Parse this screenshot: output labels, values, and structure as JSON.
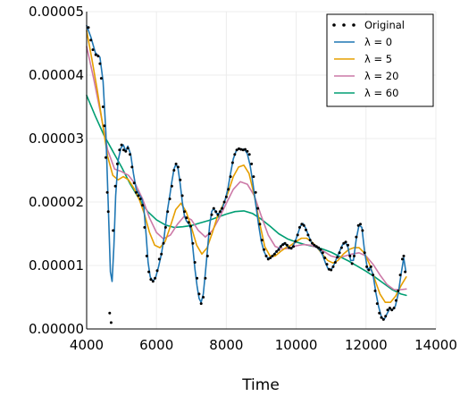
{
  "chart_data": {
    "type": "line",
    "title": "",
    "xlabel": "Time",
    "ylabel": "",
    "xlim": [
      4000,
      14000
    ],
    "ylim": [
      0.0,
      5e-05
    ],
    "x_ticks": [
      "4000",
      "6000",
      "8000",
      "10000",
      "12000",
      "14000"
    ],
    "y_ticks": [
      "0.00000",
      "0.00001",
      "0.00002",
      "0.00003",
      "0.00004",
      "0.00005"
    ],
    "x_tick_values": [
      4000,
      6000,
      8000,
      10000,
      12000,
      14000
    ],
    "y_tick_values": [
      0.0,
      1e-05,
      2e-05,
      3e-05,
      4e-05,
      5e-05
    ],
    "grid": true,
    "legend_position": "top-right",
    "colors": {
      "original": "#000000",
      "lambda_0": "#1f77b4",
      "lambda_5": "#e69f00",
      "lambda_20": "#cc79a7",
      "lambda_60": "#009e73"
    },
    "legend": [
      {
        "label": "Original",
        "marker": "dot"
      },
      {
        "label": "λ   = 0",
        "marker": "line"
      },
      {
        "label": "λ   = 5",
        "marker": "line"
      },
      {
        "label": "λ   = 20",
        "marker": "line"
      },
      {
        "label": "λ   = 60",
        "marker": "line"
      }
    ],
    "original_points": [
      [
        4050,
        4.75e-05
      ],
      [
        4120,
        4.55e-05
      ],
      [
        4180,
        4.4e-05
      ],
      [
        4260,
        4.32e-05
      ],
      [
        4330,
        4.3e-05
      ],
      [
        4380,
        4.18e-05
      ],
      [
        4420,
        3.95e-05
      ],
      [
        4470,
        3.5e-05
      ],
      [
        4510,
        3.2e-05
      ],
      [
        4550,
        2.7e-05
      ],
      [
        4590,
        2.15e-05
      ],
      [
        4620,
        1.85e-05
      ],
      [
        4660,
        2.5e-06
      ],
      [
        4700,
        1e-06
      ],
      [
        4760,
        1.55e-05
      ],
      [
        4820,
        2.25e-05
      ],
      [
        4880,
        2.6e-05
      ],
      [
        4940,
        2.82e-05
      ],
      [
        5000,
        2.9e-05
      ],
      [
        5060,
        2.82e-05
      ],
      [
        5120,
        2.8e-05
      ],
      [
        5180,
        2.85e-05
      ],
      [
        5240,
        2.75e-05
      ],
      [
        5300,
        2.55e-05
      ],
      [
        5360,
        2.3e-05
      ],
      [
        5420,
        2.15e-05
      ],
      [
        5480,
        2.1e-05
      ],
      [
        5540,
        2.05e-05
      ],
      [
        5600,
        1.95e-05
      ],
      [
        5660,
        1.6e-05
      ],
      [
        5720,
        1.15e-05
      ],
      [
        5780,
        9e-06
      ],
      [
        5840,
        7.8e-06
      ],
      [
        5900,
        7.5e-06
      ],
      [
        5960,
        8e-06
      ],
      [
        6020,
        9.2e-06
      ],
      [
        6080,
        1.1e-05
      ],
      [
        6140,
        1.18e-05
      ],
      [
        6200,
        1.35e-05
      ],
      [
        6260,
        1.6e-05
      ],
      [
        6320,
        1.85e-05
      ],
      [
        6380,
        2.05e-05
      ],
      [
        6440,
        2.25e-05
      ],
      [
        6500,
        2.5e-05
      ],
      [
        6560,
        2.6e-05
      ],
      [
        6620,
        2.55e-05
      ],
      [
        6680,
        2.35e-05
      ],
      [
        6740,
        2.1e-05
      ],
      [
        6800,
        1.85e-05
      ],
      [
        6860,
        1.75e-05
      ],
      [
        6920,
        1.68e-05
      ],
      [
        6980,
        1.62e-05
      ],
      [
        7040,
        1.35e-05
      ],
      [
        7100,
        1.05e-05
      ],
      [
        7160,
        8e-06
      ],
      [
        7220,
        5.5e-06
      ],
      [
        7280,
        4e-06
      ],
      [
        7340,
        5e-06
      ],
      [
        7400,
        8e-06
      ],
      [
        7460,
        1.15e-05
      ],
      [
        7520,
        1.5e-05
      ],
      [
        7580,
        1.8e-05
      ],
      [
        7640,
        1.9e-05
      ],
      [
        7700,
        1.85e-05
      ],
      [
        7760,
        1.8e-05
      ],
      [
        7820,
        1.85e-05
      ],
      [
        7880,
        1.9e-05
      ],
      [
        7940,
        2e-05
      ],
      [
        8000,
        2.08e-05
      ],
      [
        8060,
        2.2e-05
      ],
      [
        8120,
        2.4e-05
      ],
      [
        8180,
        2.62e-05
      ],
      [
        8240,
        2.75e-05
      ],
      [
        8300,
        2.82e-05
      ],
      [
        8360,
        2.84e-05
      ],
      [
        8420,
        2.83e-05
      ],
      [
        8480,
        2.82e-05
      ],
      [
        8540,
        2.83e-05
      ],
      [
        8600,
        2.8e-05
      ],
      [
        8660,
        2.75e-05
      ],
      [
        8720,
        2.6e-05
      ],
      [
        8780,
        2.4e-05
      ],
      [
        8840,
        2.15e-05
      ],
      [
        8900,
        1.9e-05
      ],
      [
        8960,
        1.65e-05
      ],
      [
        9020,
        1.4e-05
      ],
      [
        9080,
        1.25e-05
      ],
      [
        9140,
        1.15e-05
      ],
      [
        9200,
        1.1e-05
      ],
      [
        9260,
        1.12e-05
      ],
      [
        9320,
        1.15e-05
      ],
      [
        9380,
        1.18e-05
      ],
      [
        9440,
        1.22e-05
      ],
      [
        9500,
        1.25e-05
      ],
      [
        9560,
        1.3e-05
      ],
      [
        9620,
        1.33e-05
      ],
      [
        9680,
        1.35e-05
      ],
      [
        9740,
        1.32e-05
      ],
      [
        9800,
        1.28e-05
      ],
      [
        9860,
        1.27e-05
      ],
      [
        9920,
        1.3e-05
      ],
      [
        9980,
        1.38e-05
      ],
      [
        10040,
        1.48e-05
      ],
      [
        10100,
        1.6e-05
      ],
      [
        10160,
        1.65e-05
      ],
      [
        10220,
        1.63e-05
      ],
      [
        10280,
        1.56e-05
      ],
      [
        10340,
        1.48e-05
      ],
      [
        10400,
        1.4e-05
      ],
      [
        10460,
        1.35e-05
      ],
      [
        10520,
        1.32e-05
      ],
      [
        10580,
        1.3e-05
      ],
      [
        10640,
        1.28e-05
      ],
      [
        10700,
        1.25e-05
      ],
      [
        10760,
        1.2e-05
      ],
      [
        10820,
        1.12e-05
      ],
      [
        10880,
        1.02e-05
      ],
      [
        10940,
        9.4e-06
      ],
      [
        11000,
        9.3e-06
      ],
      [
        11060,
        9.8e-06
      ],
      [
        11120,
        1.05e-05
      ],
      [
        11180,
        1.13e-05
      ],
      [
        11240,
        1.2e-05
      ],
      [
        11300,
        1.28e-05
      ],
      [
        11360,
        1.35e-05
      ],
      [
        11420,
        1.37e-05
      ],
      [
        11480,
        1.32e-05
      ],
      [
        11540,
        1.15e-05
      ],
      [
        11600,
        1.03e-05
      ],
      [
        11660,
        1.15e-05
      ],
      [
        11720,
        1.45e-05
      ],
      [
        11780,
        1.63e-05
      ],
      [
        11840,
        1.65e-05
      ],
      [
        11900,
        1.55e-05
      ],
      [
        11960,
        1.2e-05
      ],
      [
        12020,
        9.8e-06
      ],
      [
        12080,
        9.3e-06
      ],
      [
        12140,
        9.8e-06
      ],
      [
        12200,
        8.5e-06
      ],
      [
        12260,
        6e-06
      ],
      [
        12320,
        4e-06
      ],
      [
        12380,
        2.5e-06
      ],
      [
        12440,
        1.8e-06
      ],
      [
        12500,
        1.5e-06
      ],
      [
        12560,
        2e-06
      ],
      [
        12620,
        3e-06
      ],
      [
        12680,
        3.3e-06
      ],
      [
        12740,
        3e-06
      ],
      [
        12800,
        3.3e-06
      ],
      [
        12860,
        4.5e-06
      ],
      [
        12920,
        6e-06
      ],
      [
        12980,
        8.5e-06
      ],
      [
        13040,
        1.1e-05
      ],
      [
        13080,
        1.15e-05
      ],
      [
        13120,
        9e-06
      ]
    ],
    "series": [
      {
        "name": "λ   = 0",
        "x": [
          4000,
          4120,
          4250,
          4380,
          4470,
          4550,
          4620,
          4680,
          4730,
          4780,
          4830,
          4900,
          4980,
          5050,
          5120,
          5180,
          5260,
          5340,
          5420,
          5500,
          5580,
          5640,
          5700,
          5760,
          5820,
          5900,
          5980,
          6060,
          6140,
          6220,
          6300,
          6380,
          6440,
          6500,
          6560,
          6620,
          6680,
          6740,
          6800,
          6860,
          6920,
          6980,
          7040,
          7100,
          7160,
          7220,
          7280,
          7340,
          7400,
          7460,
          7520,
          7580,
          7640,
          7720,
          7800,
          7880,
          7960,
          8040,
          8120,
          8200,
          8280,
          8360,
          8440,
          8520,
          8600,
          8680,
          8760,
          8840,
          8920,
          9000,
          9080,
          9160,
          9240,
          9320,
          9400,
          9480,
          9560,
          9640,
          9720,
          9800,
          9880,
          9960,
          10040,
          10120,
          10200,
          10280,
          10360,
          10440,
          10520,
          10600,
          10680,
          10760,
          10840,
          10920,
          11000,
          11080,
          11160,
          11240,
          11320,
          11400,
          11480,
          11560,
          11640,
          11720,
          11800,
          11880,
          11960,
          12040,
          12120,
          12200,
          12280,
          12360,
          12440,
          12520,
          12600,
          12680,
          12760,
          12840,
          12920,
          13000,
          13080,
          13140
        ],
        "y": [
          4.78e-05,
          4.6e-05,
          4.35e-05,
          4.28e-05,
          3.9e-05,
          3.1e-05,
          1.95e-05,
          9e-06,
          7.5e-06,
          1.3e-05,
          2.1e-05,
          2.65e-05,
          2.85e-05,
          2.9e-05,
          2.8e-05,
          2.88e-05,
          2.75e-05,
          2.45e-05,
          2.2e-05,
          2.12e-05,
          2.05e-05,
          1.9e-05,
          1.5e-05,
          1.05e-05,
          8.2e-06,
          7.5e-06,
          8.2e-06,
          9.8e-06,
          1.18e-05,
          1.45e-05,
          1.82e-05,
          2.1e-05,
          2.32e-05,
          2.52e-05,
          2.6e-05,
          2.52e-05,
          2.28e-05,
          2e-05,
          1.78e-05,
          1.7e-05,
          1.66e-05,
          1.58e-05,
          1.28e-05,
          9.5e-06,
          6.8e-06,
          4.8e-06,
          4.2e-06,
          5.5e-06,
          8.8e-06,
          1.25e-05,
          1.62e-05,
          1.85e-05,
          1.9e-05,
          1.82e-05,
          1.82e-05,
          1.9e-05,
          2.02e-05,
          2.2e-05,
          2.45e-05,
          2.68e-05,
          2.8e-05,
          2.84e-05,
          2.83e-05,
          2.83e-05,
          2.76e-05,
          2.58e-05,
          2.3e-05,
          1.98e-05,
          1.65e-05,
          1.38e-05,
          1.22e-05,
          1.13e-05,
          1.11e-05,
          1.15e-05,
          1.2e-05,
          1.25e-05,
          1.31e-05,
          1.35e-05,
          1.32e-05,
          1.27e-05,
          1.28e-05,
          1.36e-05,
          1.49e-05,
          1.62e-05,
          1.66e-05,
          1.58e-05,
          1.46e-05,
          1.36e-05,
          1.31e-05,
          1.28e-05,
          1.24e-05,
          1.16e-05,
          1.04e-05,
          9.4e-06,
          9.3e-06,
          1.01e-05,
          1.12e-05,
          1.22e-05,
          1.32e-05,
          1.37e-05,
          1.29e-05,
          1.08e-05,
          1.08e-05,
          1.42e-05,
          1.64e-05,
          1.6e-05,
          1.22e-05,
          9.4e-06,
          9.7e-06,
          8.6e-06,
          5.8e-06,
          3.5e-06,
          1.9e-06,
          1.5e-06,
          2.4e-06,
          3.2e-06,
          3e-06,
          3.6e-06,
          5.5e-06,
          8.5e-06,
          1.12e-05,
          9e-06
        ]
      },
      {
        "name": "λ   = 5",
        "x": [
          4000,
          4150,
          4300,
          4450,
          4600,
          4750,
          4900,
          5050,
          5200,
          5350,
          5500,
          5650,
          5800,
          5950,
          6100,
          6250,
          6400,
          6550,
          6700,
          6850,
          7000,
          7150,
          7300,
          7450,
          7600,
          7750,
          7900,
          8050,
          8200,
          8350,
          8500,
          8650,
          8800,
          8950,
          9100,
          9250,
          9400,
          9550,
          9700,
          9850,
          10000,
          10150,
          10300,
          10450,
          10600,
          10750,
          10900,
          11050,
          11200,
          11350,
          11500,
          11650,
          11800,
          11950,
          12100,
          12250,
          12400,
          12550,
          12700,
          12850,
          13000,
          13150
        ],
        "y": [
          4.7e-05,
          4.25e-05,
          3.78e-05,
          3.25e-05,
          2.72e-05,
          2.42e-05,
          2.35e-05,
          2.4e-05,
          2.35e-05,
          2.22e-05,
          2.05e-05,
          1.82e-05,
          1.52e-05,
          1.32e-05,
          1.28e-05,
          1.38e-05,
          1.62e-05,
          1.88e-05,
          1.98e-05,
          1.85e-05,
          1.6e-05,
          1.32e-05,
          1.18e-05,
          1.28e-05,
          1.52e-05,
          1.78e-05,
          1.95e-05,
          2.15e-05,
          2.4e-05,
          2.55e-05,
          2.58e-05,
          2.45e-05,
          2.1e-05,
          1.68e-05,
          1.3e-05,
          1.15e-05,
          1.15e-05,
          1.22e-05,
          1.28e-05,
          1.32e-05,
          1.38e-05,
          1.43e-05,
          1.43e-05,
          1.37e-05,
          1.28e-05,
          1.18e-05,
          1.08e-05,
          1.04e-05,
          1.08e-05,
          1.18e-05,
          1.25e-05,
          1.28e-05,
          1.28e-05,
          1.2e-05,
          1.02e-05,
          7.8e-06,
          5.5e-06,
          4.2e-06,
          4.2e-06,
          5.2e-06,
          6.8e-06,
          8.2e-06
        ]
      },
      {
        "name": "λ   = 20",
        "x": [
          4000,
          4200,
          4400,
          4600,
          4800,
          5000,
          5200,
          5400,
          5600,
          5800,
          6000,
          6200,
          6400,
          6600,
          6800,
          7000,
          7200,
          7400,
          7600,
          7800,
          8000,
          8200,
          8400,
          8600,
          8800,
          9000,
          9200,
          9400,
          9600,
          9800,
          10000,
          10200,
          10400,
          10600,
          10800,
          11000,
          11200,
          11400,
          11600,
          11800,
          12000,
          12200,
          12400,
          12600,
          12800,
          13000,
          13150
        ],
        "y": [
          4.45e-05,
          3.95e-05,
          3.4e-05,
          2.82e-05,
          2.52e-05,
          2.48e-05,
          2.42e-05,
          2.28e-05,
          2.05e-05,
          1.75e-05,
          1.52e-05,
          1.42e-05,
          1.48e-05,
          1.65e-05,
          1.78e-05,
          1.72e-05,
          1.55e-05,
          1.45e-05,
          1.55e-05,
          1.75e-05,
          1.98e-05,
          2.2e-05,
          2.32e-05,
          2.28e-05,
          2.1e-05,
          1.78e-05,
          1.48e-05,
          1.3e-05,
          1.26e-05,
          1.27e-05,
          1.31e-05,
          1.33e-05,
          1.32e-05,
          1.28e-05,
          1.22e-05,
          1.15e-05,
          1.12e-05,
          1.15e-05,
          1.18e-05,
          1.2e-05,
          1.15e-05,
          1.02e-05,
          8.5e-06,
          7e-06,
          6.2e-06,
          6.2e-06,
          6.3e-06
        ]
      },
      {
        "name": "λ   = 60",
        "x": [
          4000,
          4250,
          4500,
          4750,
          5000,
          5250,
          5500,
          5750,
          6000,
          6250,
          6500,
          6750,
          7000,
          7250,
          7500,
          7750,
          8000,
          8250,
          8500,
          8750,
          9000,
          9250,
          9500,
          9750,
          10000,
          10250,
          10500,
          10750,
          11000,
          11250,
          11500,
          11750,
          12000,
          12250,
          12500,
          12750,
          13000,
          13150
        ],
        "y": [
          3.68e-05,
          3.35e-05,
          3.05e-05,
          2.8e-05,
          2.55e-05,
          2.28e-05,
          2.05e-05,
          1.85e-05,
          1.72e-05,
          1.64e-05,
          1.6e-05,
          1.61e-05,
          1.63e-05,
          1.67e-05,
          1.71e-05,
          1.76e-05,
          1.81e-05,
          1.85e-05,
          1.86e-05,
          1.82e-05,
          1.73e-05,
          1.62e-05,
          1.5e-05,
          1.42e-05,
          1.37e-05,
          1.33e-05,
          1.3e-05,
          1.26e-05,
          1.21e-05,
          1.14e-05,
          1.07e-05,
          9.9e-06,
          9.1e-06,
          8.2e-06,
          7.2e-06,
          6.2e-06,
          5.5e-06,
          5.3e-06
        ]
      }
    ]
  }
}
